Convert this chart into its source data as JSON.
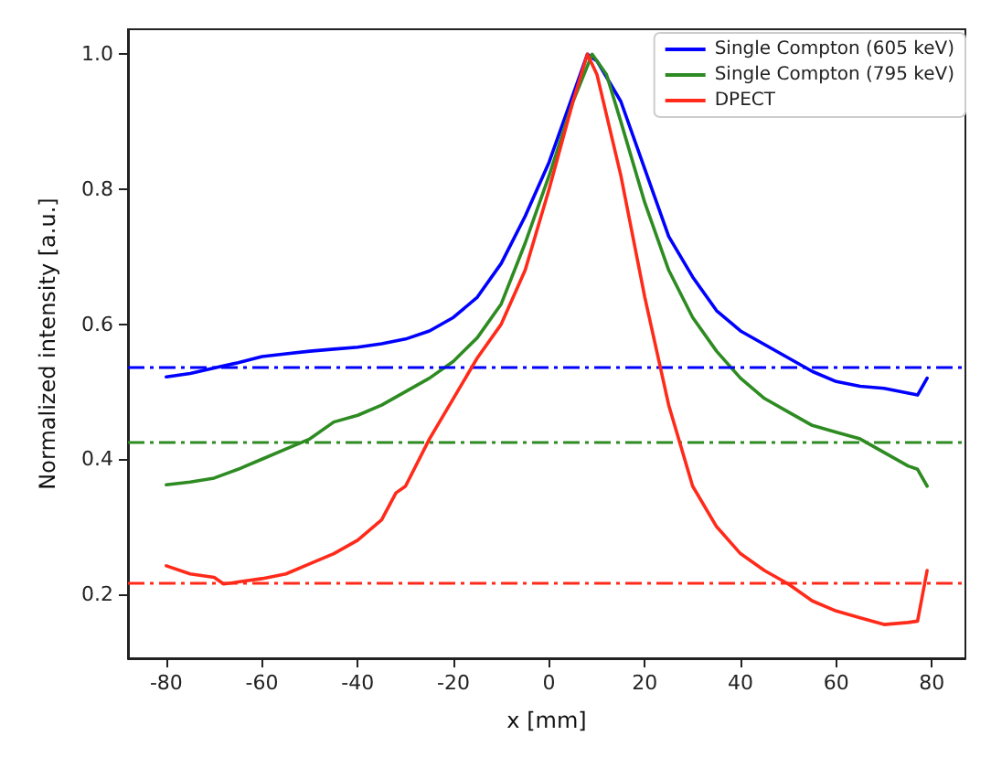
{
  "chart_data": {
    "type": "line",
    "xlabel": "x [mm]",
    "ylabel": "Normalized intensity [a.u.]",
    "xlim": [
      -88,
      87
    ],
    "xticks": [
      -80,
      -60,
      -40,
      -20,
      0,
      20,
      40,
      60,
      80
    ],
    "ylim": [
      0.105,
      1.037
    ],
    "yticks": [
      0.2,
      0.4,
      0.6,
      0.8,
      {
        "value": 1,
        "label": "1.0"
      }
    ],
    "grid": false,
    "legend": "top right",
    "marker": "none",
    "line_style": "solid",
    "series": [
      {
        "name": "Single Compton (605 keV)",
        "color": "#0000ff",
        "x": [
          -80,
          -75,
          -70,
          -65,
          -60,
          -55,
          -50,
          -45,
          -40,
          -35,
          -30,
          -25,
          -20,
          -15,
          -10,
          -5,
          0,
          5,
          8,
          10,
          15,
          20,
          25,
          30,
          35,
          40,
          45,
          50,
          55,
          60,
          65,
          70,
          77,
          79
        ],
        "values": [
          0.522,
          0.527,
          0.535,
          0.543,
          0.552,
          0.556,
          0.56,
          0.563,
          0.566,
          0.571,
          0.578,
          0.59,
          0.61,
          0.64,
          0.69,
          0.76,
          0.84,
          0.94,
          1.0,
          0.99,
          0.93,
          0.83,
          0.73,
          0.67,
          0.62,
          0.59,
          0.57,
          0.55,
          0.53,
          0.515,
          0.508,
          0.505,
          0.495,
          0.52
        ]
      },
      {
        "name": "Single Compton (795 keV)",
        "color": "#2e8b22",
        "x": [
          -80,
          -75,
          -70,
          -65,
          -60,
          -55,
          -50,
          -45,
          -40,
          -35,
          -30,
          -25,
          -20,
          -15,
          -10,
          -5,
          0,
          5,
          9,
          12,
          15,
          20,
          25,
          30,
          35,
          40,
          45,
          50,
          55,
          60,
          65,
          70,
          75,
          77,
          79
        ],
        "values": [
          0.362,
          0.366,
          0.372,
          0.385,
          0.4,
          0.415,
          0.43,
          0.455,
          0.465,
          0.48,
          0.5,
          0.52,
          0.545,
          0.58,
          0.63,
          0.72,
          0.82,
          0.93,
          1.0,
          0.97,
          0.9,
          0.78,
          0.68,
          0.61,
          0.56,
          0.52,
          0.49,
          0.47,
          0.45,
          0.44,
          0.43,
          0.41,
          0.39,
          0.385,
          0.36
        ]
      },
      {
        "name": "DPECT",
        "color": "#ff2a1a",
        "x": [
          -80,
          -75,
          -70,
          -68,
          -65,
          -60,
          -55,
          -50,
          -45,
          -40,
          -35,
          -32,
          -30,
          -25,
          -20,
          -15,
          -10,
          -5,
          0,
          5,
          8,
          10,
          15,
          20,
          25,
          30,
          35,
          40,
          45,
          50,
          55,
          60,
          65,
          70,
          75,
          77,
          79
        ],
        "values": [
          0.242,
          0.23,
          0.225,
          0.215,
          0.218,
          0.223,
          0.23,
          0.245,
          0.26,
          0.28,
          0.31,
          0.35,
          0.36,
          0.43,
          0.49,
          0.55,
          0.6,
          0.68,
          0.8,
          0.93,
          1.0,
          0.97,
          0.82,
          0.64,
          0.48,
          0.36,
          0.3,
          0.26,
          0.235,
          0.215,
          0.19,
          0.175,
          0.165,
          0.155,
          0.158,
          0.16,
          0.235
        ]
      }
    ],
    "ref_lines": [
      {
        "axis": "y",
        "value": 0.537,
        "color": "#0000ff",
        "line_style": "dashed"
      },
      {
        "axis": "y",
        "value": 0.425,
        "color": "#2e8b22",
        "line_style": "dashed"
      },
      {
        "axis": "y",
        "value": 0.218,
        "color": "#ff2a1a",
        "line_style": "dashed"
      }
    ]
  }
}
